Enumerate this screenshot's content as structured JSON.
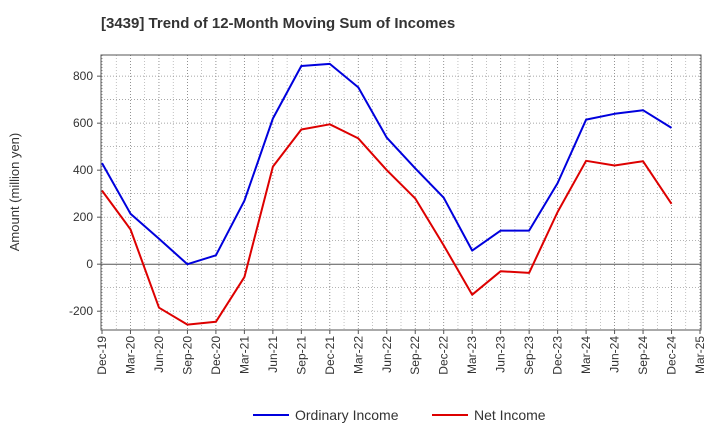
{
  "header": {
    "title": "[3439]  Trend of 12-Month Moving Sum of Incomes"
  },
  "chart_data": {
    "type": "line",
    "title": "[3439]  Trend of 12-Month Moving Sum of Incomes",
    "xlabel": "",
    "ylabel": "Amount (million yen)",
    "ylim": [
      -280,
      890
    ],
    "yticks": [
      -200,
      0,
      200,
      400,
      600,
      800
    ],
    "grid": true,
    "legend_position": "bottom-center",
    "categories": [
      "Dec-19",
      "Mar-20",
      "Jun-20",
      "Sep-20",
      "Dec-20",
      "Mar-21",
      "Jun-21",
      "Sep-21",
      "Dec-21",
      "Mar-22",
      "Jun-22",
      "Sep-22",
      "Dec-22",
      "Mar-23",
      "Jun-23",
      "Sep-23",
      "Dec-23",
      "Mar-24",
      "Jun-24",
      "Sep-24",
      "Dec-24",
      "Mar-25"
    ],
    "series": [
      {
        "name": "Ordinary Income",
        "color": "#0000dd",
        "values": [
          430,
          215,
          108,
          0,
          38,
          270,
          620,
          843,
          852,
          752,
          538,
          408,
          283,
          58,
          143,
          143,
          345,
          615,
          640,
          655,
          580,
          null
        ]
      },
      {
        "name": "Net Income",
        "color": "#dd0000",
        "values": [
          313,
          148,
          -185,
          -257,
          -245,
          -55,
          415,
          573,
          595,
          535,
          400,
          280,
          80,
          -130,
          -30,
          -37,
          222,
          440,
          420,
          438,
          257,
          null
        ]
      }
    ]
  }
}
